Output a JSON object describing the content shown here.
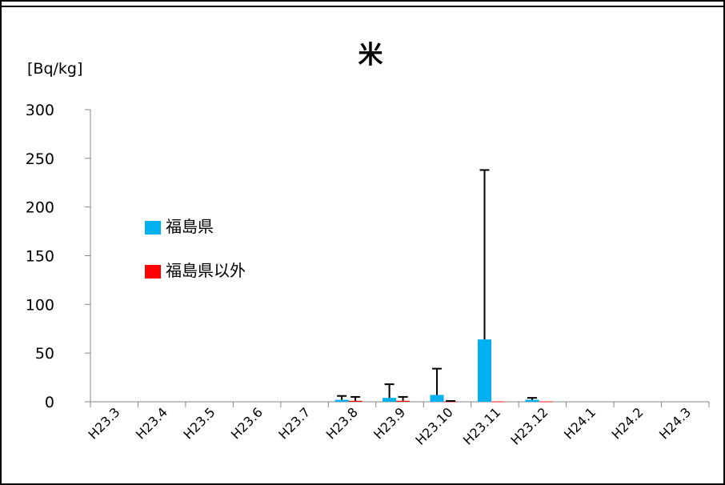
{
  "chart_data": {
    "type": "bar",
    "title": "米",
    "unit_label": "[Bq/kg]",
    "categories": [
      "H23.3",
      "H23.4",
      "H23.5",
      "H23.6",
      "H23.7",
      "H23.8",
      "H23.9",
      "H23.10",
      "H23.11",
      "H23.12",
      "H24.1",
      "H24.2",
      "H24.3"
    ],
    "ylim": [
      0,
      300
    ],
    "yticks": [
      0,
      50,
      100,
      150,
      200,
      250,
      300
    ],
    "grid": false,
    "legend_position": "left",
    "series": [
      {
        "name": "福島県",
        "color": "#00B0F0",
        "values": [
          null,
          null,
          null,
          null,
          null,
          2,
          4,
          7,
          64,
          2,
          null,
          null,
          null
        ],
        "error_upper": [
          null,
          null,
          null,
          null,
          null,
          6,
          18,
          34,
          238,
          4,
          null,
          null,
          null
        ]
      },
      {
        "name": "福島県以外",
        "color": "#FF0000",
        "values": [
          null,
          null,
          null,
          null,
          null,
          1,
          1,
          0.3,
          0.3,
          0.3,
          null,
          null,
          null
        ],
        "error_upper": [
          null,
          null,
          null,
          null,
          null,
          5,
          5,
          0.8,
          null,
          null,
          null,
          null,
          null
        ]
      }
    ]
  }
}
